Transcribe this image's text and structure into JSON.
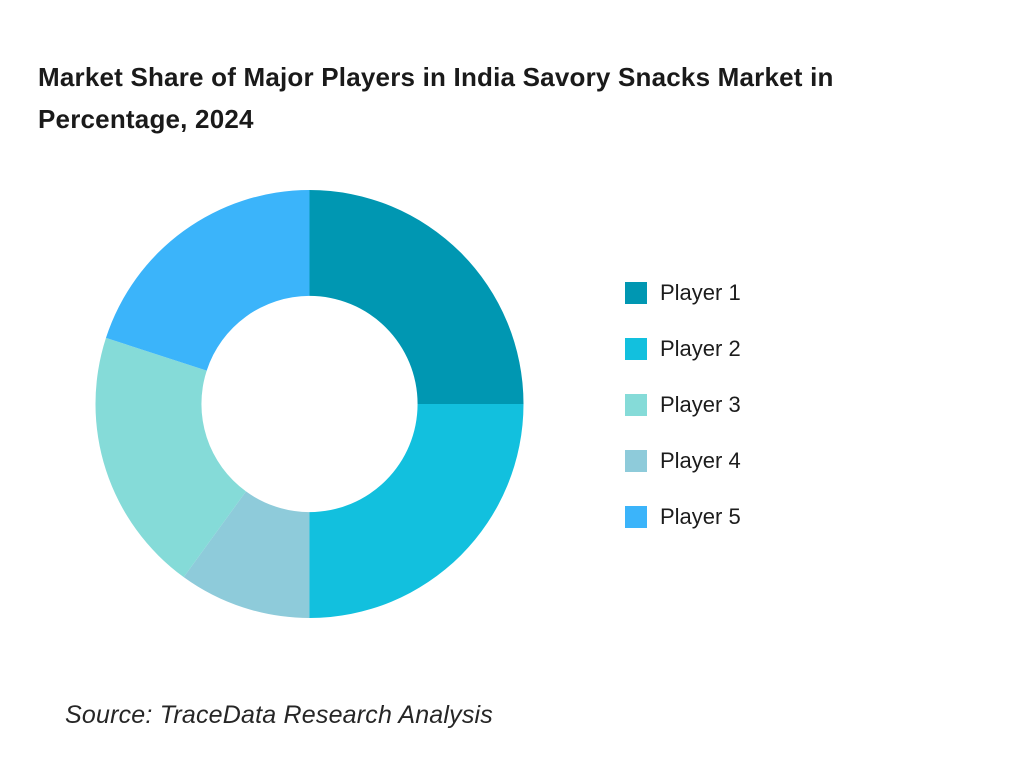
{
  "header": {
    "title_lines": [
      "Market Share of Major Players in India Savory Snacks Market in",
      "Percentage, 2024"
    ]
  },
  "footer": {
    "source": "Source: TraceData Research Analysis"
  },
  "colors": {
    "background": "#FFFFFF",
    "title_text": "#1A1A1A",
    "source_text": "#262626"
  },
  "chart_data": {
    "type": "pie",
    "subtype": "donut",
    "title": "Market Share of Major Players in India Savory Snacks Market in Percentage, 2024",
    "unit": "percent",
    "series": [
      {
        "name": "Player 1",
        "value": 25,
        "color": "#0097B2"
      },
      {
        "name": "Player 2",
        "value": 25,
        "color": "#12C0DE"
      },
      {
        "name": "Player 3",
        "value": 20,
        "color": "#85DBD8"
      },
      {
        "name": "Player 4",
        "value": 10,
        "color": "#8ECBDA"
      },
      {
        "name": "Player 5",
        "value": 20,
        "color": "#3BB4FA"
      }
    ],
    "draw_order_clockwise_from_top": [
      "Player 1",
      "Player 2",
      "Player 4",
      "Player 3",
      "Player 5"
    ],
    "start_angle_deg": 0,
    "donut_hole_ratio": 0.505,
    "legend_position": "right",
    "legend_labels": [
      "Player 1",
      "Player 2",
      "Player 3",
      "Player 4",
      "Player 5"
    ],
    "data_labels_shown": false,
    "source": "Source: TraceData Research Analysis"
  }
}
